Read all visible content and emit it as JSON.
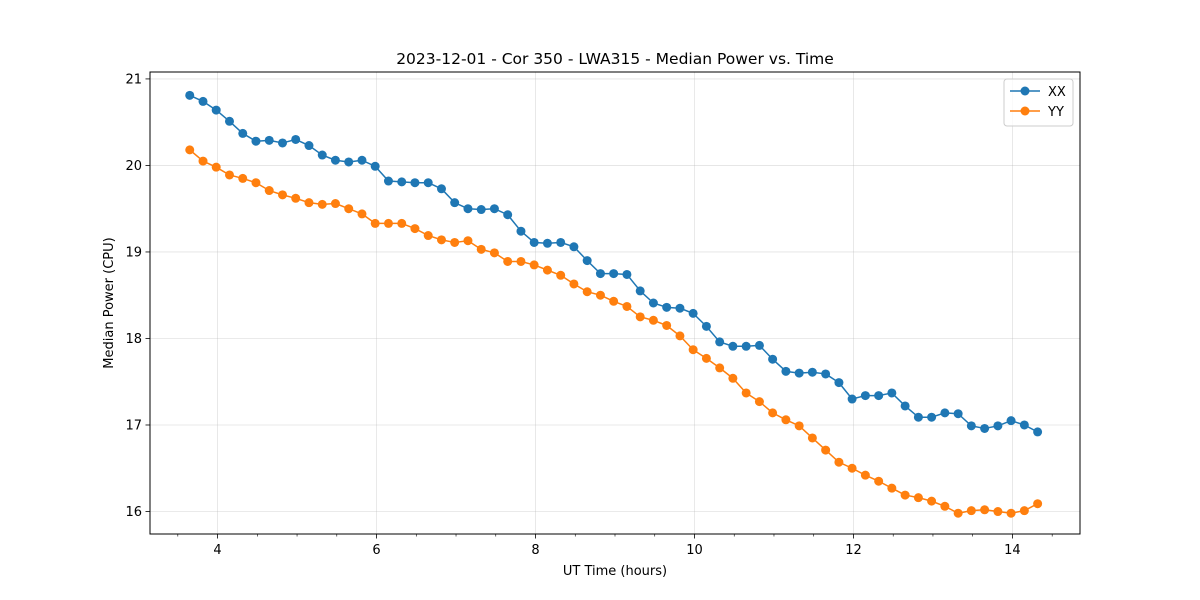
{
  "chart_data": {
    "type": "line",
    "title": "2023-12-01 - Cor 350 - LWA315 - Median Power vs. Time",
    "xlabel": "UT Time (hours)",
    "ylabel": "Median Power (CPU)",
    "xlim": [
      3.15,
      14.85
    ],
    "ylim": [
      15.74,
      21.08
    ],
    "xticks": [
      4,
      6,
      8,
      10,
      12,
      14
    ],
    "xtick_labels": [
      "4",
      "6",
      "8",
      "10",
      "12",
      "14"
    ],
    "xminor_step": 0.5,
    "yticks": [
      16,
      17,
      18,
      19,
      20,
      21
    ],
    "ytick_labels": [
      "16",
      "17",
      "18",
      "19",
      "20",
      "21"
    ],
    "grid": true,
    "legend_position": "top-right",
    "x": [
      3.65,
      3.817,
      3.983,
      4.15,
      4.317,
      4.483,
      4.65,
      4.817,
      4.983,
      5.15,
      5.317,
      5.483,
      5.65,
      5.817,
      5.983,
      6.15,
      6.317,
      6.483,
      6.65,
      6.817,
      6.983,
      7.15,
      7.317,
      7.483,
      7.65,
      7.817,
      7.983,
      8.15,
      8.317,
      8.483,
      8.65,
      8.817,
      8.983,
      9.15,
      9.317,
      9.483,
      9.65,
      9.817,
      9.983,
      10.15,
      10.317,
      10.483,
      10.65,
      10.817,
      10.983,
      11.15,
      11.317,
      11.483,
      11.65,
      11.817,
      11.983,
      12.15,
      12.317,
      12.483,
      12.65,
      12.817,
      12.983,
      13.15,
      13.317,
      13.483,
      13.65,
      13.817,
      13.983,
      14.15,
      14.317
    ],
    "series": [
      {
        "name": "XX",
        "color": "#1f77b4",
        "values": [
          20.81,
          20.74,
          20.64,
          20.51,
          20.37,
          20.28,
          20.29,
          20.26,
          20.3,
          20.23,
          20.12,
          20.06,
          20.04,
          20.06,
          19.99,
          19.82,
          19.81,
          19.8,
          19.8,
          19.73,
          19.57,
          19.5,
          19.49,
          19.5,
          19.43,
          19.24,
          19.11,
          19.1,
          19.11,
          19.06,
          18.9,
          18.75,
          18.75,
          18.74,
          18.55,
          18.41,
          18.36,
          18.35,
          18.29,
          18.14,
          17.96,
          17.91,
          17.91,
          17.92,
          17.76,
          17.62,
          17.6,
          17.61,
          17.59,
          17.49,
          17.3,
          17.34,
          17.34,
          17.37,
          17.22,
          17.09,
          17.09,
          17.14,
          17.13,
          16.99,
          16.96,
          16.99,
          17.05,
          17.0,
          16.92
        ]
      },
      {
        "name": "YY",
        "color": "#ff7f0e",
        "values": [
          20.18,
          20.05,
          19.98,
          19.89,
          19.85,
          19.8,
          19.71,
          19.66,
          19.62,
          19.57,
          19.55,
          19.56,
          19.5,
          19.44,
          19.33,
          19.33,
          19.33,
          19.27,
          19.19,
          19.14,
          19.11,
          19.13,
          19.03,
          18.99,
          18.89,
          18.89,
          18.85,
          18.79,
          18.73,
          18.63,
          18.54,
          18.5,
          18.43,
          18.37,
          18.25,
          18.21,
          18.15,
          18.03,
          17.87,
          17.77,
          17.66,
          17.54,
          17.37,
          17.27,
          17.14,
          17.06,
          16.99,
          16.85,
          16.71,
          16.57,
          16.5,
          16.42,
          16.35,
          16.27,
          16.19,
          16.16,
          16.12,
          16.06,
          15.98,
          16.01,
          16.02,
          16.0,
          15.98,
          16.01,
          16.09
        ]
      }
    ]
  }
}
